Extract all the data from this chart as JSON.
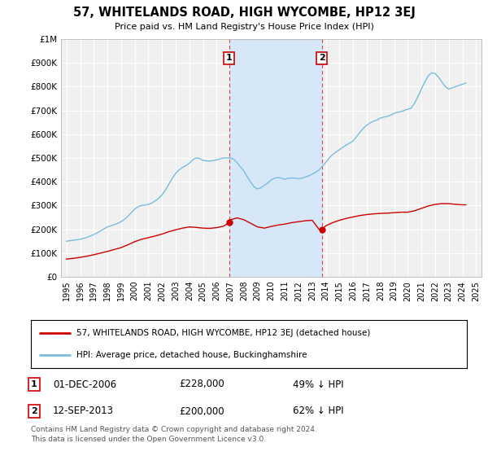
{
  "title": "57, WHITELANDS ROAD, HIGH WYCOMBE, HP12 3EJ",
  "subtitle": "Price paid vs. HM Land Registry's House Price Index (HPI)",
  "hpi_color": "#7bbcde",
  "price_color": "#cc0000",
  "background_color": "#ffffff",
  "plot_bg_color": "#f0f0f0",
  "shade_color": "#d6e8f7",
  "ylim": [
    0,
    1000000
  ],
  "yticks": [
    0,
    100000,
    200000,
    300000,
    400000,
    500000,
    600000,
    700000,
    800000,
    900000,
    1000000
  ],
  "ytick_labels": [
    "£0",
    "£100K",
    "£200K",
    "£300K",
    "£400K",
    "£500K",
    "£600K",
    "£700K",
    "£800K",
    "£900K",
    "£1M"
  ],
  "transaction1": {
    "price": 228000,
    "label": "1",
    "pct": "49% ↓ HPI",
    "date_str": "01-DEC-2006",
    "year": 2006.917
  },
  "transaction2": {
    "price": 200000,
    "label": "2",
    "pct": "62% ↓ HPI",
    "date_str": "12-SEP-2013",
    "year": 2013.708
  },
  "legend_line1": "57, WHITELANDS ROAD, HIGH WYCOMBE, HP12 3EJ (detached house)",
  "legend_line2": "HPI: Average price, detached house, Buckinghamshire",
  "footnote1": "Contains HM Land Registry data © Crown copyright and database right 2024.",
  "footnote2": "This data is licensed under the Open Government Licence v3.0.",
  "hpi_data": {
    "years": [
      1995.0,
      1995.25,
      1995.5,
      1995.75,
      1996.0,
      1996.25,
      1996.5,
      1996.75,
      1997.0,
      1997.25,
      1997.5,
      1997.75,
      1998.0,
      1998.25,
      1998.5,
      1998.75,
      1999.0,
      1999.25,
      1999.5,
      1999.75,
      2000.0,
      2000.25,
      2000.5,
      2000.75,
      2001.0,
      2001.25,
      2001.5,
      2001.75,
      2002.0,
      2002.25,
      2002.5,
      2002.75,
      2003.0,
      2003.25,
      2003.5,
      2003.75,
      2004.0,
      2004.25,
      2004.5,
      2004.75,
      2005.0,
      2005.25,
      2005.5,
      2005.75,
      2006.0,
      2006.25,
      2006.5,
      2006.75,
      2007.0,
      2007.25,
      2007.5,
      2007.75,
      2008.0,
      2008.25,
      2008.5,
      2008.75,
      2009.0,
      2009.25,
      2009.5,
      2009.75,
      2010.0,
      2010.25,
      2010.5,
      2010.75,
      2011.0,
      2011.25,
      2011.5,
      2011.75,
      2012.0,
      2012.25,
      2012.5,
      2012.75,
      2013.0,
      2013.25,
      2013.5,
      2013.75,
      2014.0,
      2014.25,
      2014.5,
      2014.75,
      2015.0,
      2015.25,
      2015.5,
      2015.75,
      2016.0,
      2016.25,
      2016.5,
      2016.75,
      2017.0,
      2017.25,
      2017.5,
      2017.75,
      2018.0,
      2018.25,
      2018.5,
      2018.75,
      2019.0,
      2019.25,
      2019.5,
      2019.75,
      2020.0,
      2020.25,
      2020.5,
      2020.75,
      2021.0,
      2021.25,
      2021.5,
      2021.75,
      2022.0,
      2022.25,
      2022.5,
      2022.75,
      2023.0,
      2023.25,
      2023.5,
      2023.75,
      2024.0,
      2024.25
    ],
    "values": [
      150000,
      152000,
      154000,
      156000,
      158000,
      162000,
      166000,
      172000,
      178000,
      185000,
      193000,
      202000,
      210000,
      215000,
      220000,
      225000,
      232000,
      242000,
      255000,
      270000,
      285000,
      295000,
      300000,
      302000,
      305000,
      310000,
      320000,
      330000,
      345000,
      365000,
      390000,
      415000,
      435000,
      450000,
      460000,
      468000,
      478000,
      492000,
      500000,
      498000,
      490000,
      488000,
      487000,
      489000,
      492000,
      496000,
      500000,
      500000,
      500000,
      495000,
      480000,
      462000,
      445000,
      420000,
      398000,
      378000,
      370000,
      375000,
      385000,
      395000,
      408000,
      415000,
      418000,
      415000,
      410000,
      415000,
      416000,
      415000,
      413000,
      415000,
      420000,
      425000,
      432000,
      440000,
      450000,
      465000,
      482000,
      500000,
      515000,
      525000,
      535000,
      545000,
      555000,
      563000,
      572000,
      590000,
      608000,
      625000,
      638000,
      648000,
      655000,
      660000,
      668000,
      672000,
      675000,
      680000,
      688000,
      692000,
      695000,
      700000,
      705000,
      710000,
      730000,
      760000,
      790000,
      820000,
      845000,
      858000,
      855000,
      840000,
      820000,
      800000,
      790000,
      795000,
      800000,
      805000,
      810000,
      815000
    ]
  },
  "price_data": {
    "years": [
      1995.0,
      1995.5,
      1996.0,
      1996.5,
      1997.0,
      1997.5,
      1998.0,
      1998.5,
      1999.0,
      1999.5,
      2000.0,
      2000.5,
      2001.0,
      2001.5,
      2002.0,
      2002.5,
      2003.0,
      2003.5,
      2004.0,
      2004.5,
      2005.0,
      2005.5,
      2006.0,
      2006.5,
      2006.917,
      2007.0,
      2007.5,
      2008.0,
      2008.5,
      2009.0,
      2009.5,
      2010.0,
      2010.5,
      2011.0,
      2011.5,
      2012.0,
      2012.5,
      2013.0,
      2013.5,
      2013.708,
      2014.0,
      2014.5,
      2015.0,
      2015.5,
      2016.0,
      2016.5,
      2017.0,
      2017.5,
      2018.0,
      2018.5,
      2019.0,
      2019.5,
      2020.0,
      2020.5,
      2021.0,
      2021.5,
      2022.0,
      2022.5,
      2023.0,
      2023.5,
      2024.0,
      2024.25
    ],
    "values": [
      75000,
      78000,
      82000,
      87000,
      93000,
      100000,
      107000,
      115000,
      123000,
      135000,
      148000,
      158000,
      165000,
      172000,
      180000,
      190000,
      198000,
      205000,
      210000,
      208000,
      205000,
      204000,
      207000,
      213000,
      228000,
      240000,
      248000,
      240000,
      225000,
      210000,
      205000,
      212000,
      218000,
      222000,
      228000,
      232000,
      236000,
      238000,
      200000,
      200000,
      215000,
      228000,
      238000,
      246000,
      252000,
      258000,
      262000,
      265000,
      267000,
      268000,
      270000,
      272000,
      272000,
      278000,
      288000,
      298000,
      305000,
      308000,
      308000,
      305000,
      303000,
      303000
    ]
  }
}
